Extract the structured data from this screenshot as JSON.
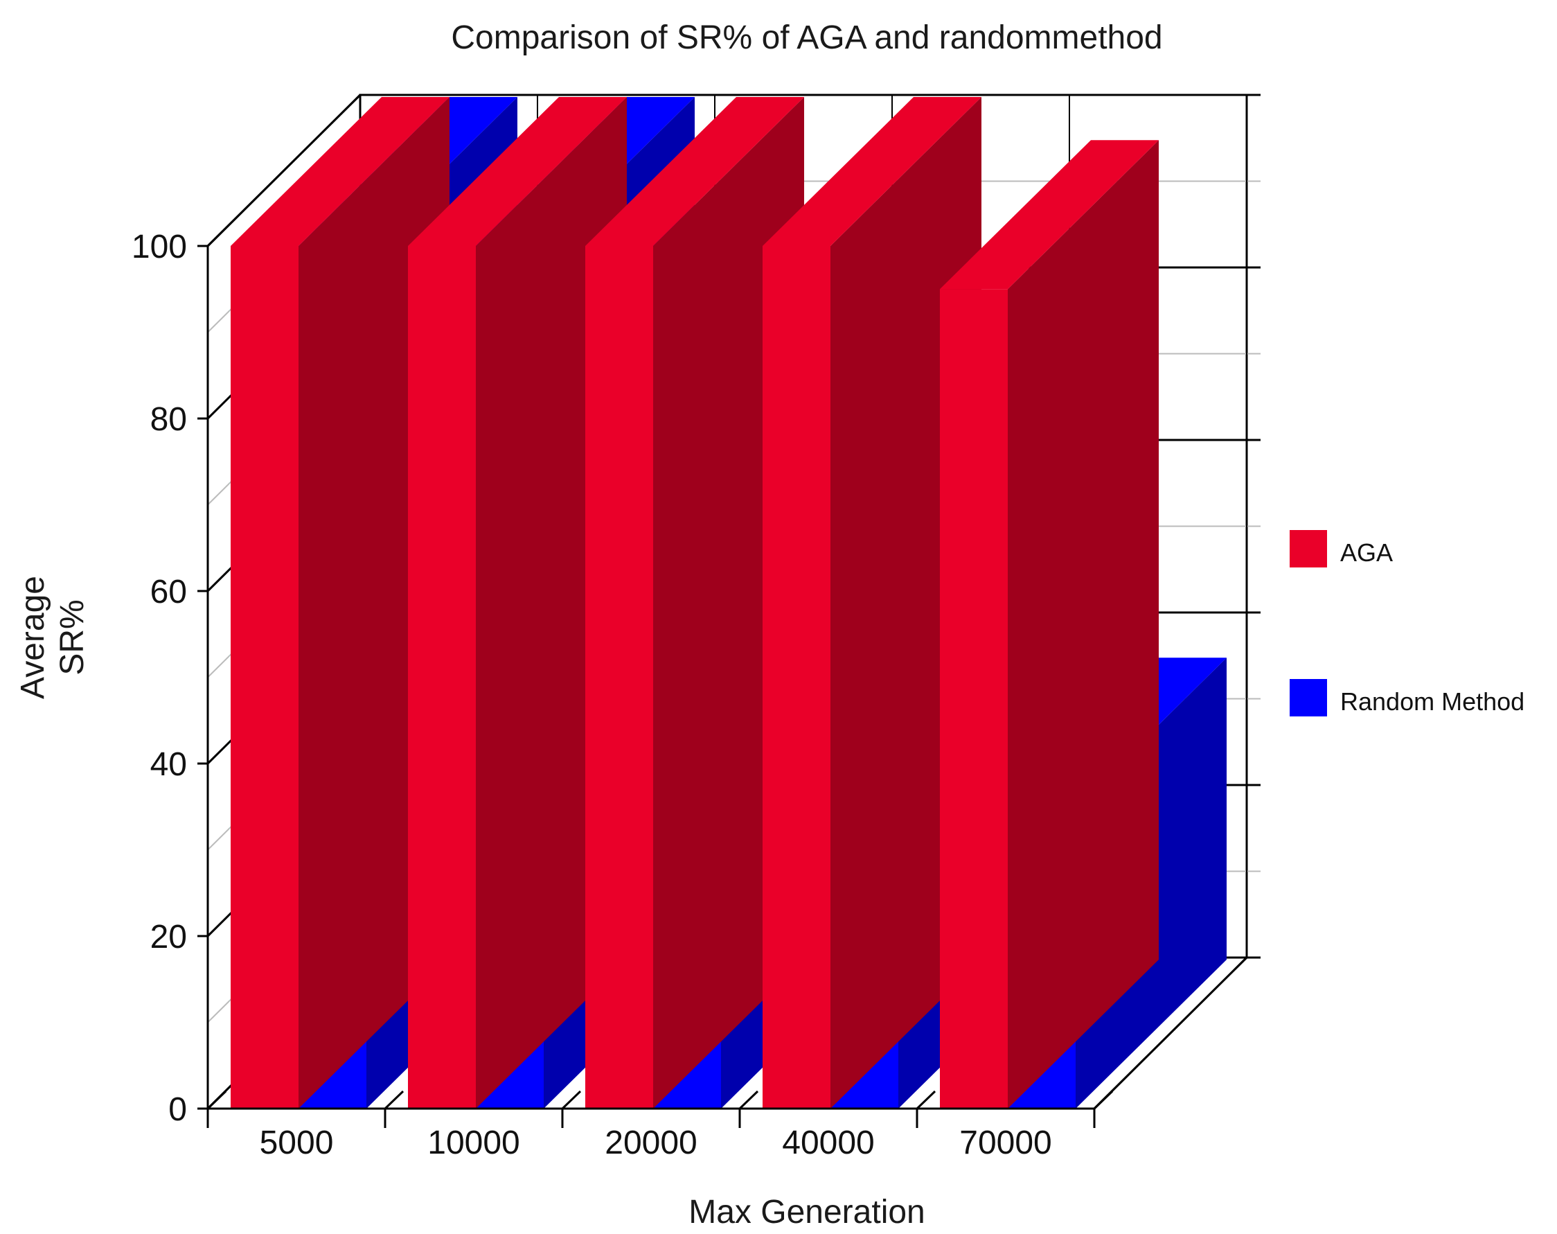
{
  "chart_data": {
    "type": "bar",
    "title": "Comparison of SR% of AGA and randommethod",
    "xlabel": "Max Generation",
    "ylabel": [
      "Average",
      "SR%"
    ],
    "categories": [
      "5000",
      "10000",
      "20000",
      "40000",
      "70000"
    ],
    "series": [
      {
        "name": "AGA",
        "values": [
          100,
          100,
          100,
          100,
          95
        ],
        "color": "#ea0029"
      },
      {
        "name": "Random Method",
        "values": [
          100,
          100,
          80,
          55,
          35
        ],
        "color": "#0000ff"
      }
    ],
    "ylim": [
      0,
      100
    ],
    "yticks": [
      "0",
      "20",
      "40",
      "60",
      "80",
      "100"
    ],
    "legend_position": "right",
    "three_d": true,
    "grid": true
  }
}
